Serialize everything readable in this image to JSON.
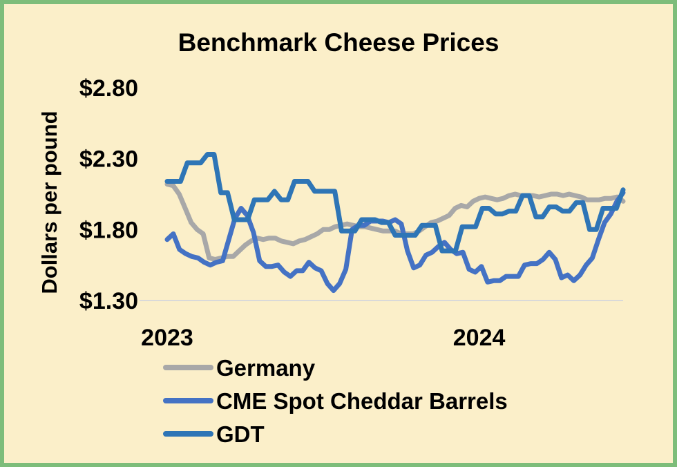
{
  "chart_data": {
    "type": "line",
    "title": "Benchmark Cheese Prices",
    "xlabel": "",
    "ylabel": "Dollars per pound",
    "ylim": [
      1.3,
      2.8
    ],
    "yticks": [
      1.3,
      1.8,
      2.3,
      2.8
    ],
    "ytick_labels": [
      "$1.30",
      "$1.80",
      "$2.30",
      "$2.80"
    ],
    "xlim": [
      0,
      76
    ],
    "xticks": [
      0,
      52
    ],
    "xtick_labels": [
      "2023",
      "2024"
    ],
    "grid": false,
    "legend_position": "bottom-left",
    "series": [
      {
        "name": "Germany",
        "color": "#a8a8a8",
        "values": [
          2.12,
          2.11,
          2.05,
          1.95,
          1.85,
          1.8,
          1.77,
          1.6,
          1.59,
          1.6,
          1.61,
          1.61,
          1.65,
          1.69,
          1.72,
          1.74,
          1.73,
          1.74,
          1.74,
          1.72,
          1.71,
          1.7,
          1.72,
          1.73,
          1.75,
          1.77,
          1.8,
          1.8,
          1.82,
          1.83,
          1.84,
          1.83,
          1.82,
          1.82,
          1.81,
          1.8,
          1.79,
          1.79,
          1.79,
          1.77,
          1.77,
          1.77,
          1.79,
          1.82,
          1.85,
          1.86,
          1.88,
          1.9,
          1.95,
          1.97,
          1.96,
          2.0,
          2.02,
          2.03,
          2.02,
          2.01,
          2.02,
          2.04,
          2.05,
          2.04,
          2.04,
          2.04,
          2.03,
          2.04,
          2.05,
          2.05,
          2.04,
          2.05,
          2.04,
          2.03,
          2.01,
          2.01,
          2.01,
          2.02,
          2.02,
          2.03,
          2.0
        ]
      },
      {
        "name": "CME Spot Cheddar Barrels",
        "color": "#4472c4",
        "values": [
          1.73,
          1.77,
          1.66,
          1.63,
          1.61,
          1.6,
          1.57,
          1.55,
          1.57,
          1.58,
          1.73,
          1.88,
          1.95,
          1.9,
          1.78,
          1.58,
          1.54,
          1.54,
          1.55,
          1.5,
          1.47,
          1.51,
          1.51,
          1.57,
          1.53,
          1.51,
          1.42,
          1.37,
          1.42,
          1.52,
          1.8,
          1.83,
          1.83,
          1.86,
          1.86,
          1.86,
          1.85,
          1.87,
          1.84,
          1.65,
          1.53,
          1.55,
          1.62,
          1.64,
          1.68,
          1.71,
          1.66,
          1.63,
          1.64,
          1.52,
          1.5,
          1.54,
          1.43,
          1.44,
          1.44,
          1.47,
          1.47,
          1.47,
          1.55,
          1.56,
          1.56,
          1.59,
          1.64,
          1.59,
          1.46,
          1.48,
          1.44,
          1.48,
          1.55,
          1.6,
          1.73,
          1.85,
          1.91,
          2.0,
          2.06
        ]
      },
      {
        "name": "GDT",
        "color": "#2e75b6",
        "values": [
          2.14,
          2.14,
          2.14,
          2.27,
          2.27,
          2.27,
          2.33,
          2.33,
          2.06,
          2.06,
          1.87,
          1.87,
          1.87,
          2.01,
          2.01,
          2.01,
          2.07,
          2.01,
          2.01,
          2.14,
          2.14,
          2.14,
          2.07,
          2.07,
          2.07,
          2.07,
          1.79,
          1.79,
          1.79,
          1.87,
          1.87,
          1.87,
          1.85,
          1.85,
          1.76,
          1.76,
          1.76,
          1.76,
          1.83,
          1.83,
          1.83,
          1.65,
          1.65,
          1.65,
          1.82,
          1.82,
          1.82,
          1.95,
          1.95,
          1.91,
          1.91,
          1.93,
          1.93,
          2.04,
          2.04,
          1.89,
          1.89,
          1.96,
          1.96,
          1.93,
          1.93,
          1.99,
          1.99,
          1.8,
          1.8,
          1.95,
          1.95,
          1.95,
          2.08
        ]
      }
    ]
  }
}
